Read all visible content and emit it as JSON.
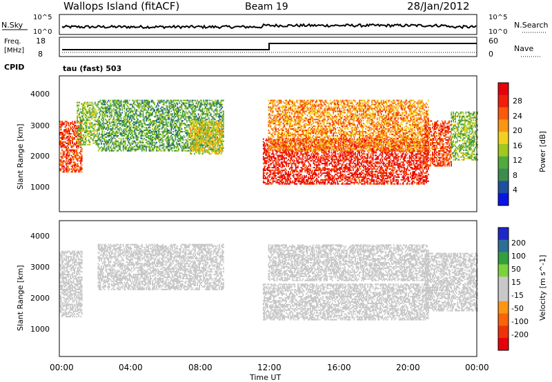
{
  "header": {
    "station": "Wallops Island (fitACF)",
    "beam": "Beam 19",
    "date": "28/Jan/2012"
  },
  "top_panels": {
    "nsky_label": "N.Sky",
    "nsearch_label": "N.Search",
    "noise_ticks_left": [
      "10^5",
      "10^0"
    ],
    "noise_ticks_right": [
      "10^5",
      "10^0"
    ],
    "freq_label_1": "Freq.",
    "freq_label_2": "[MHz]",
    "freq_ticks": [
      "18",
      "8"
    ],
    "nave_label": "Nave",
    "nave_ticks": [
      "60",
      "0"
    ],
    "cpid_label": "CPID",
    "cpid_value": "tau (fast) 503"
  },
  "colors": {
    "power_scale": [
      "#0a14e6",
      "#1e50a0",
      "#3c8c50",
      "#50aa3c",
      "#a0c81e",
      "#f0d21e",
      "#fa9614",
      "#fa5a0a",
      "#f01e0a",
      "#e6000a"
    ],
    "velocity_scale": [
      "#1e28c8",
      "#2d6e96",
      "#32a03c",
      "#7dd23c",
      "#c8c8c8",
      "#c8c8c8",
      "#fa9614",
      "#fa640a",
      "#f0320a",
      "#e6000a"
    ],
    "axis": "#000000"
  },
  "chart_data": [
    {
      "type": "heatmap",
      "title": "Power",
      "ylabel": "Slant Range [km]",
      "ylim": [
        0,
        4500
      ],
      "yticks": [
        "1000",
        "2000",
        "3000",
        "4000"
      ],
      "xlim": [
        "00:00",
        "24:00"
      ],
      "colorbar_label": "Power [dB]",
      "colorbar_ticks": [
        "4",
        "8",
        "12",
        "16",
        "20",
        "24",
        "28"
      ],
      "colorbar_range": [
        0,
        30
      ],
      "bands": [
        {
          "t0": 0.0,
          "t1": 1.3,
          "r0": 1300,
          "r1": 3000,
          "level": 24
        },
        {
          "t0": 1.0,
          "t1": 2.2,
          "r0": 2200,
          "r1": 3600,
          "level": 12
        },
        {
          "t0": 2.2,
          "t1": 9.4,
          "r0": 2000,
          "r1": 3700,
          "level": 10
        },
        {
          "t0": 7.5,
          "t1": 9.4,
          "r0": 1900,
          "r1": 3000,
          "level": 16
        },
        {
          "t0": 11.7,
          "t1": 21.2,
          "r0": 900,
          "r1": 2400,
          "level": 26
        },
        {
          "t0": 12.0,
          "t1": 21.2,
          "r0": 2000,
          "r1": 3700,
          "level": 20
        },
        {
          "t0": 21.0,
          "t1": 22.5,
          "r0": 1500,
          "r1": 3000,
          "level": 24
        },
        {
          "t0": 22.5,
          "t1": 24.0,
          "r0": 1700,
          "r1": 3300,
          "level": 12
        }
      ]
    },
    {
      "type": "heatmap",
      "title": "Velocity",
      "ylabel": "Slant Range [km]",
      "ylim": [
        0,
        4500
      ],
      "yticks": [
        "1000",
        "2000",
        "3000",
        "4000"
      ],
      "xlim": [
        "00:00",
        "24:00"
      ],
      "xticks": [
        "00:00",
        "04:00",
        "08:00",
        "12:00",
        "16:00",
        "20:00",
        "00:00"
      ],
      "xlabel": "Time UT",
      "colorbar_label": "Velocity [m s^-1]",
      "colorbar_ticks": [
        "200",
        "100",
        "50",
        "15",
        "-15",
        "-50",
        "-100",
        "-200"
      ],
      "colorbar_range": [
        -250,
        250
      ],
      "bands": [
        {
          "t0": 0.0,
          "t1": 1.3,
          "r0": 1300,
          "r1": 3500,
          "level": -40
        },
        {
          "t0": 2.2,
          "t1": 9.4,
          "r0": 2200,
          "r1": 3700,
          "level": 0
        },
        {
          "t0": 11.7,
          "t1": 21.2,
          "r0": 1200,
          "r1": 2400,
          "level": 0
        },
        {
          "t0": 12.0,
          "t1": 21.2,
          "r0": 2500,
          "r1": 3700,
          "level": 5
        },
        {
          "t0": 21.0,
          "t1": 24.0,
          "r0": 1500,
          "r1": 3400,
          "level": -30
        }
      ]
    }
  ]
}
